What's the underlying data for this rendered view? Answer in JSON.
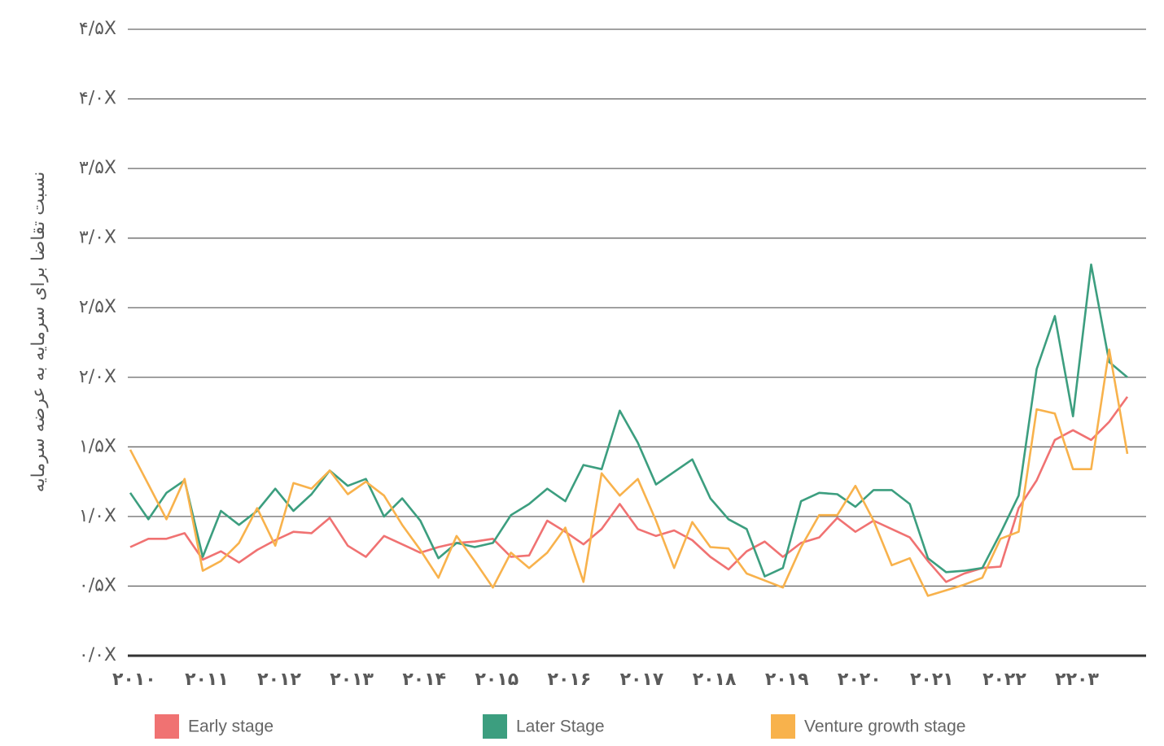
{
  "chart_data": {
    "type": "line",
    "ylabel": "نسبت تقاضا برای سرمایه به عرضه سرمایه",
    "categories": [
      "۲۰۱۰",
      null,
      null,
      null,
      "۲۰۱۱",
      null,
      null,
      null,
      "۲۰۱۲",
      null,
      null,
      null,
      "۲۰۱۳",
      null,
      null,
      null,
      "۲۰۱۴",
      null,
      null,
      null,
      "۲۰۱۵",
      null,
      null,
      null,
      "۲۰۱۶",
      null,
      null,
      null,
      "۲۰۱۷",
      null,
      null,
      null,
      "۲۰۱۸",
      null,
      null,
      null,
      "۲۰۱۹",
      null,
      null,
      null,
      "۲۰۲۰",
      null,
      null,
      null,
      "۲۰۲۱",
      null,
      null,
      null,
      "۲۰۲۲",
      null,
      null,
      null,
      "۲۲۰۳",
      null,
      null,
      null
    ],
    "series": [
      {
        "name": "Early stage",
        "color": "#f07272",
        "values": [
          0.78,
          0.84,
          0.84,
          0.88,
          0.69,
          0.75,
          0.67,
          0.76,
          0.83,
          0.89,
          0.88,
          0.99,
          0.79,
          0.71,
          0.86,
          0.8,
          0.74,
          0.78,
          0.81,
          0.82,
          0.84,
          0.71,
          0.72,
          0.97,
          0.89,
          0.8,
          0.91,
          1.09,
          0.91,
          0.86,
          0.9,
          0.83,
          0.71,
          0.62,
          0.75,
          0.82,
          0.71,
          0.81,
          0.85,
          0.99,
          0.89,
          0.97,
          0.91,
          0.85,
          0.68,
          0.53,
          0.59,
          0.63,
          0.64,
          1.06,
          1.26,
          1.55,
          1.62,
          1.55,
          1.68,
          1.86
        ]
      },
      {
        "name": "Later Stage",
        "color": "#3c9e7f",
        "values": [
          1.17,
          0.98,
          1.17,
          1.26,
          0.71,
          1.04,
          0.94,
          1.04,
          1.2,
          1.04,
          1.16,
          1.33,
          1.22,
          1.27,
          1.0,
          1.13,
          0.97,
          0.7,
          0.81,
          0.78,
          0.81,
          1.01,
          1.09,
          1.2,
          1.11,
          1.37,
          1.34,
          1.76,
          1.53,
          1.23,
          1.32,
          1.41,
          1.13,
          0.98,
          0.91,
          0.57,
          0.63,
          1.11,
          1.17,
          1.16,
          1.07,
          1.19,
          1.19,
          1.09,
          0.7,
          0.6,
          0.61,
          0.63,
          0.88,
          1.15,
          2.06,
          2.44,
          1.72,
          2.81,
          2.11,
          2.0
        ]
      },
      {
        "name": "Venture growth stage",
        "color": "#f8b24c",
        "values": [
          1.48,
          1.23,
          0.98,
          1.27,
          0.61,
          0.68,
          0.81,
          1.06,
          0.79,
          1.24,
          1.2,
          1.33,
          1.16,
          1.25,
          1.15,
          0.94,
          0.76,
          0.56,
          0.86,
          0.68,
          0.49,
          0.74,
          0.63,
          0.74,
          0.92,
          0.53,
          1.31,
          1.15,
          1.27,
          0.97,
          0.63,
          0.96,
          0.78,
          0.77,
          0.59,
          0.54,
          0.49,
          0.78,
          1.01,
          1.01,
          1.22,
          0.97,
          0.65,
          0.7,
          0.43,
          0.47,
          0.51,
          0.56,
          0.84,
          0.89,
          1.77,
          1.74,
          1.34,
          1.34,
          2.2,
          1.45
        ]
      }
    ],
    "ylim": [
      0,
      4.5
    ],
    "yticks": [
      {
        "value": 0,
        "label": "۰/۰X"
      },
      {
        "value": 0.5,
        "label": "۰/۵X"
      },
      {
        "value": 1,
        "label": "۱/۰X"
      },
      {
        "value": 1.5,
        "label": "۱/۵X"
      },
      {
        "value": 2,
        "label": "۲/۰X"
      },
      {
        "value": 2.5,
        "label": "۲/۵X"
      },
      {
        "value": 3,
        "label": "۳/۰X"
      },
      {
        "value": 3.5,
        "label": "۳/۵X"
      },
      {
        "value": 4,
        "label": "۴/۰X"
      },
      {
        "value": 4.5,
        "label": "۴/۵X"
      }
    ],
    "grid": true
  }
}
